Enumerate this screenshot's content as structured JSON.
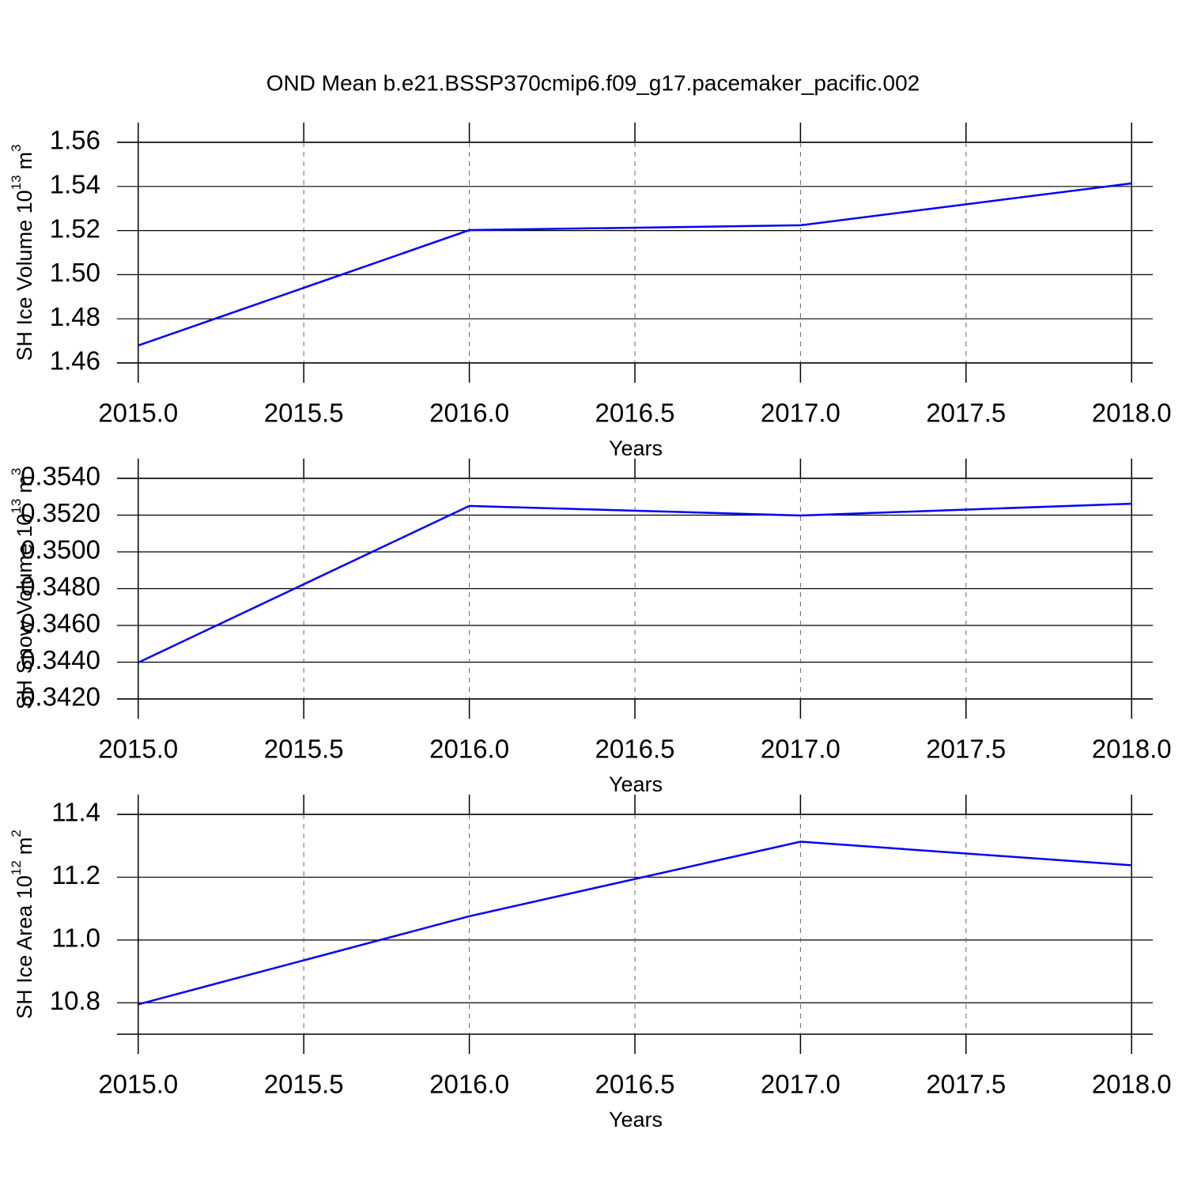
{
  "chart_data": [
    {
      "type": "line",
      "title": "OND Mean b.e21.BSSP370cmip6.f09_g17.pacemaker_pacific.002",
      "y_label": [
        "SH Ice Volume 10",
        "13",
        "m",
        "3"
      ],
      "x_label": "Years",
      "x": [
        2015,
        2016,
        2017,
        2018
      ],
      "values": [
        1.4679,
        1.5202,
        1.5224,
        1.5414
      ],
      "color": "#0000ff",
      "xlim": [
        2014.936,
        2018.064
      ],
      "ylim": [
        1.46,
        1.56
      ],
      "xticks": [
        {
          "value": 2015,
          "label": "2015.0"
        },
        2015.5,
        {
          "value": 2016,
          "label": "2016.0"
        },
        2016.5,
        {
          "value": 2017,
          "label": "2017.0"
        },
        2017.5,
        {
          "value": 2018,
          "label": "2018.0"
        }
      ],
      "yticks": [
        1.46,
        1.48,
        {
          "value": 1.5,
          "label": "1.50"
        },
        1.52,
        1.54,
        1.56
      ],
      "grid": true
    },
    {
      "type": "line",
      "y_label": [
        "SH Snow Volume 10",
        "13",
        "m",
        "3"
      ],
      "x_label": "Years",
      "x": [
        2015,
        2016,
        2017,
        2018
      ],
      "values": [
        0.34398,
        0.3525,
        0.35198,
        0.35262
      ],
      "color": "#0000ff",
      "xlim": [
        2014.936,
        2018.064
      ],
      "ylim": [
        0.342,
        0.354
      ],
      "xticks": [
        {
          "value": 2015,
          "label": "2015.0"
        },
        2015.5,
        {
          "value": 2016,
          "label": "2016.0"
        },
        2016.5,
        {
          "value": 2017,
          "label": "2017.0"
        },
        2017.5,
        {
          "value": 2018,
          "label": "2018.0"
        }
      ],
      "yticks": [
        {
          "value": 0.342,
          "label": "0.3420"
        },
        {
          "value": 0.344,
          "label": "0.3440"
        },
        {
          "value": 0.346,
          "label": "0.3460"
        },
        {
          "value": 0.348,
          "label": "0.3480"
        },
        {
          "value": 0.35,
          "label": "0.3500"
        },
        {
          "value": 0.352,
          "label": "0.3520"
        },
        {
          "value": 0.354,
          "label": "0.3540"
        }
      ],
      "grid": true
    },
    {
      "type": "line",
      "y_label": [
        "SH Ice Area 10",
        "12",
        "m",
        "2"
      ],
      "x_label": "Years",
      "x": [
        2015,
        2016,
        2017,
        2018
      ],
      "values": [
        10.795,
        11.0756,
        11.313,
        11.238
      ],
      "color": "#0000ff",
      "xlim": [
        2014.936,
        2018.064
      ],
      "ylim": [
        10.7,
        11.4
      ],
      "xticks": [
        {
          "value": 2015,
          "label": "2015.0"
        },
        2015.5,
        {
          "value": 2016,
          "label": "2016.0"
        },
        2016.5,
        {
          "value": 2017,
          "label": "2017.0"
        },
        2017.5,
        {
          "value": 2018,
          "label": "2018.0"
        }
      ],
      "yticks": [
        10.8,
        {
          "value": 11,
          "label": "11.0"
        },
        11.2,
        11.4
      ],
      "grid": true
    }
  ]
}
